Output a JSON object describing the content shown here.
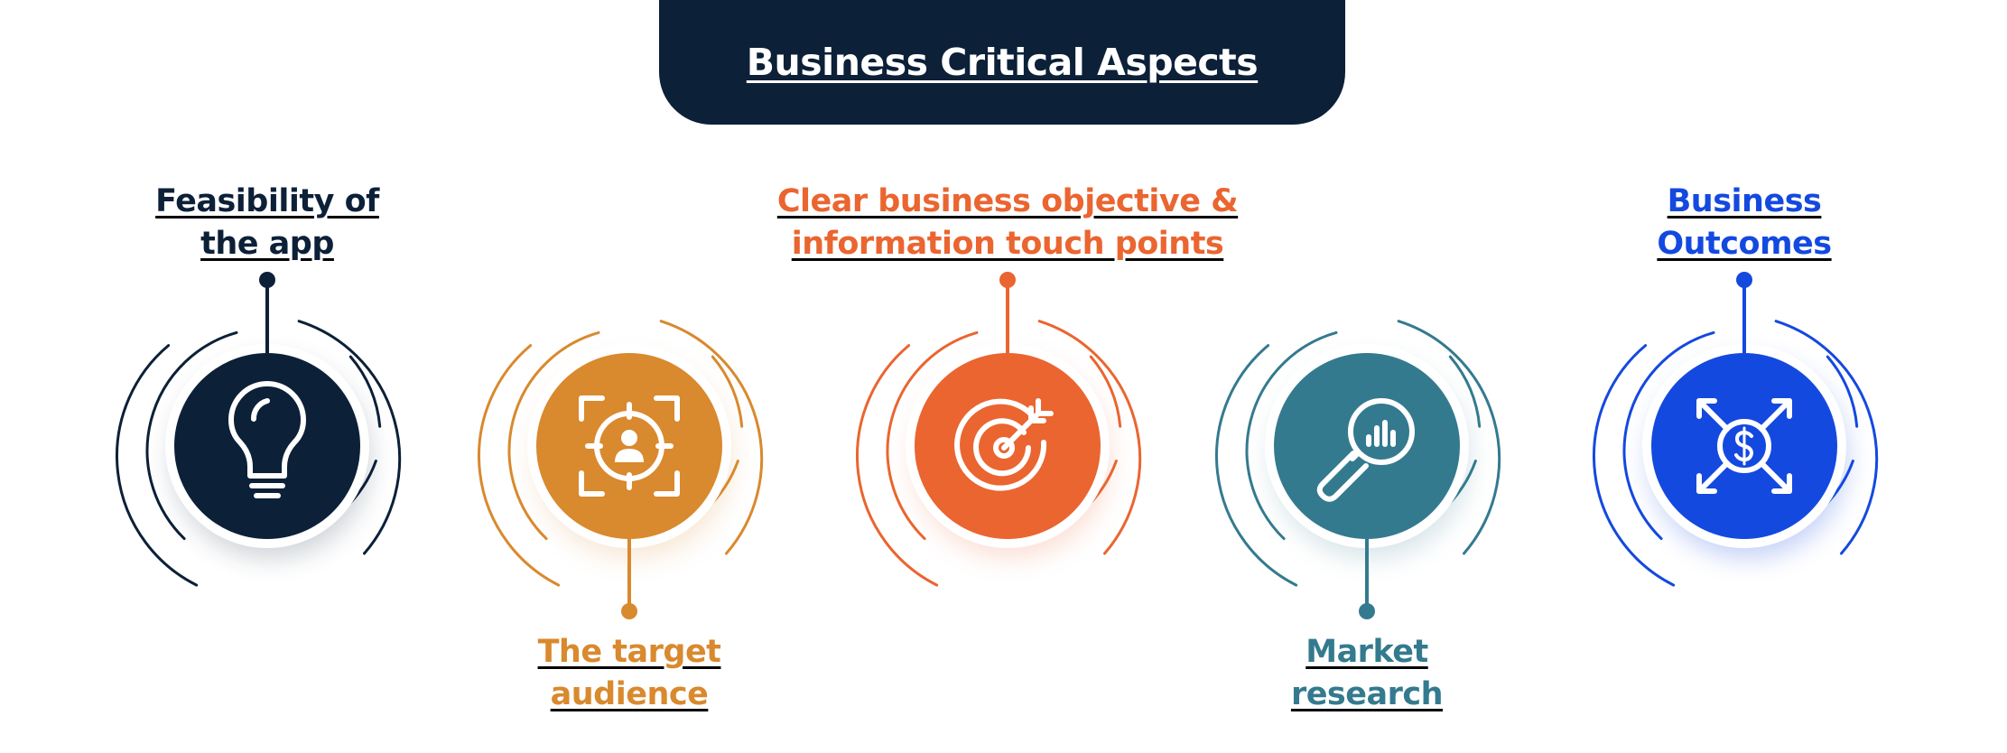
{
  "title": "Business Critical Aspects",
  "items": [
    {
      "line1": "Feasibility of ",
      "line2": "the app",
      "color": "#0c2038",
      "icon": "lightbulb-icon",
      "label_position": "top"
    },
    {
      "line1": "The target ",
      "line2": "audience",
      "color": "#d9892e",
      "icon": "target-audience-icon",
      "label_position": "bottom"
    },
    {
      "line1": "Clear business objective &",
      "line2": "information touch points",
      "color": "#ea6530",
      "icon": "bullseye-target-icon",
      "label_position": "top"
    },
    {
      "line1": "Market ",
      "line2": "research",
      "color": "#347a8f",
      "icon": "magnifier-chart-icon",
      "label_position": "bottom"
    },
    {
      "line1": "Business ",
      "line2": "Outcomes",
      "color": "#1449e0",
      "icon": "dollar-expand-icon",
      "label_position": "top"
    }
  ]
}
